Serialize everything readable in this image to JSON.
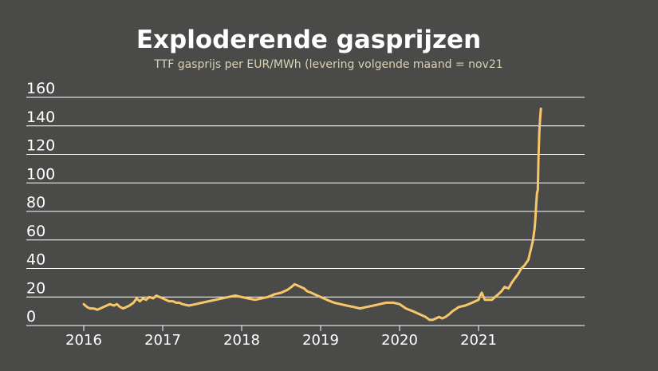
{
  "chart_data": {
    "type": "line",
    "title": "Exploderende gasprijzen",
    "subtitle": "TTF gasprijs per EUR/MWh (levering volgende maand = nov21",
    "xlabel": "",
    "ylabel": "",
    "ylim": [
      0,
      160
    ],
    "yticks": [
      0,
      20,
      40,
      60,
      80,
      100,
      120,
      140,
      160
    ],
    "xlim": [
      2016.0,
      2022.0
    ],
    "xticks": [
      "2016",
      "2017",
      "2018",
      "2019",
      "2020",
      "2021"
    ],
    "grid": "horizontal",
    "colors": {
      "background": "#4a4a48",
      "line": "#f7c76a",
      "grid": "#ffffff",
      "text": "#ffffff",
      "subtitle": "#d9d2b4"
    },
    "series": [
      {
        "x": [
          2016.0,
          2016.04,
          2016.08,
          2016.13,
          2016.17,
          2016.21,
          2016.25,
          2016.29,
          2016.33,
          2016.38,
          2016.42,
          2016.46,
          2016.5,
          2016.54,
          2016.58,
          2016.63,
          2016.67,
          2016.71,
          2016.75,
          2016.79,
          2016.83,
          2016.88,
          2016.92,
          2016.96,
          2017.0,
          2017.04,
          2017.08,
          2017.13,
          2017.17,
          2017.21,
          2017.25,
          2017.33,
          2017.42,
          2017.5,
          2017.58,
          2017.67,
          2017.75,
          2017.83,
          2017.92,
          2018.0,
          2018.08,
          2018.17,
          2018.25,
          2018.33,
          2018.42,
          2018.5,
          2018.58,
          2018.63,
          2018.67,
          2018.71,
          2018.75,
          2018.79,
          2018.83,
          2018.88,
          2018.92,
          2019.0,
          2019.08,
          2019.17,
          2019.25,
          2019.33,
          2019.42,
          2019.5,
          2019.58,
          2019.67,
          2019.75,
          2019.83,
          2019.92,
          2020.0,
          2020.08,
          2020.17,
          2020.25,
          2020.33,
          2020.38,
          2020.42,
          2020.46,
          2020.5,
          2020.54,
          2020.58,
          2020.63,
          2020.67,
          2020.75,
          2020.83,
          2020.92,
          2021.0,
          2021.02,
          2021.04,
          2021.08,
          2021.13,
          2021.17,
          2021.21,
          2021.25,
          2021.29,
          2021.33,
          2021.38,
          2021.42,
          2021.46,
          2021.5,
          2021.54,
          2021.58,
          2021.63,
          2021.67,
          2021.69,
          2021.71,
          2021.72,
          2021.73,
          2021.74,
          2021.75,
          2021.76,
          2021.77,
          2021.78,
          2021.79
        ],
        "values": [
          15,
          13,
          12,
          12,
          11,
          12,
          13,
          14,
          15,
          14,
          15,
          13,
          12,
          13,
          14,
          16,
          19,
          17,
          19,
          18,
          20,
          19,
          21,
          20,
          19,
          18,
          17,
          17,
          16,
          16,
          15,
          14,
          15,
          16,
          17,
          18,
          19,
          20,
          21,
          20,
          19,
          18,
          19,
          20,
          22,
          23,
          25,
          27,
          29,
          28,
          27,
          26,
          24,
          23,
          22,
          20,
          18,
          16,
          15,
          14,
          13,
          12,
          13,
          14,
          15,
          16,
          16,
          15,
          12,
          10,
          8,
          6,
          4,
          4,
          5,
          6,
          5,
          6,
          8,
          10,
          13,
          14,
          16,
          18,
          21,
          23,
          18,
          18,
          18,
          20,
          22,
          24,
          27,
          26,
          30,
          33,
          36,
          40,
          42,
          46,
          55,
          60,
          68,
          75,
          85,
          93,
          95,
          118,
          136,
          145,
          152
        ]
      }
    ]
  }
}
